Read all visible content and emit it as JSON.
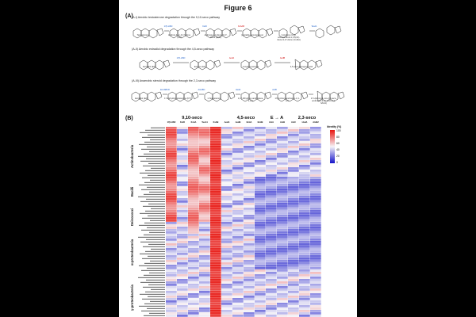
{
  "figure": {
    "title": "Figure 6",
    "panel_a_label": "(A)",
    "panel_b_label": "(B)"
  },
  "panel_a": {
    "pathways": [
      {
        "title": "(A-I) Aerobic testosterone degradation through the 9,10-seco pathway",
        "compounds": [
          "Testosterone",
          "Androst-4-en-3,17-dione (AD)",
          "Androsta-1,4-diene-3,17-dione (ADD)",
          "(unstable, spontaneous)",
          "3-Hydroxy-9,10-seconandrost-1,3,5(10)-triene-9,17-dione (3-HSA)",
          ""
        ],
        "enzymes": [
          "17β-HSD",
          "KstD",
          "KshAB",
          "TesA1"
        ]
      },
      {
        "title": "(A-II) Aerobic estradiol degradation through the 4,5-seco pathway",
        "compounds": [
          "Estradiol (E2)",
          "Estrone (E1)",
          "4-Hydroxyestrone",
          "4,5-seco-estrogenic acid"
        ],
        "enzymes": [
          "17β-HSD",
          "AedA",
          "AedB"
        ]
      },
      {
        "title": "(A-III) Anaerobic steroid degradation through the 2,3-seco pathway",
        "compounds": [
          "Estradiol (E2)",
          "17-Dehydrotestosterone (DT)",
          "1-Testosterone",
          "1,17-Dihydroxy-androstane-3-one",
          "17-Hydroxy-androstan-1,3-one",
          "17-Hydroxy-1-oxo-2,3-seco-androstan-3-oic acid (2,3-SAOA)"
        ],
        "enzymes": [
          "EmtABCD",
          "AtcABC",
          "HsdA",
          "AtcB"
        ]
      }
    ]
  },
  "panel_b": {
    "legend_title": "Identity (%)",
    "legend_ticks": [
      "100",
      "80",
      "60",
      "40",
      "20",
      "0"
    ],
    "column_groups": [
      "9,10-seco",
      "4,5-seco",
      "E → A",
      "2,3-seco"
    ],
    "column_headers": [
      "17β-HSD",
      "KstD",
      "KshA",
      "TesA1",
      "KshB",
      "AedA",
      "AedB",
      "EmtA",
      "EmtB",
      "AtcA",
      "AtcB",
      "AtcC",
      "HsdA",
      "AtcB2"
    ],
    "lineages": [
      "Actinobacteria",
      "Bacilli",
      "Deinococci",
      "α-proteobacteria",
      "γ-proteobacteria"
    ],
    "colors": {
      "high": "#e8150f",
      "mid": "#f6f4f8",
      "low": "#1413c9"
    }
  }
}
